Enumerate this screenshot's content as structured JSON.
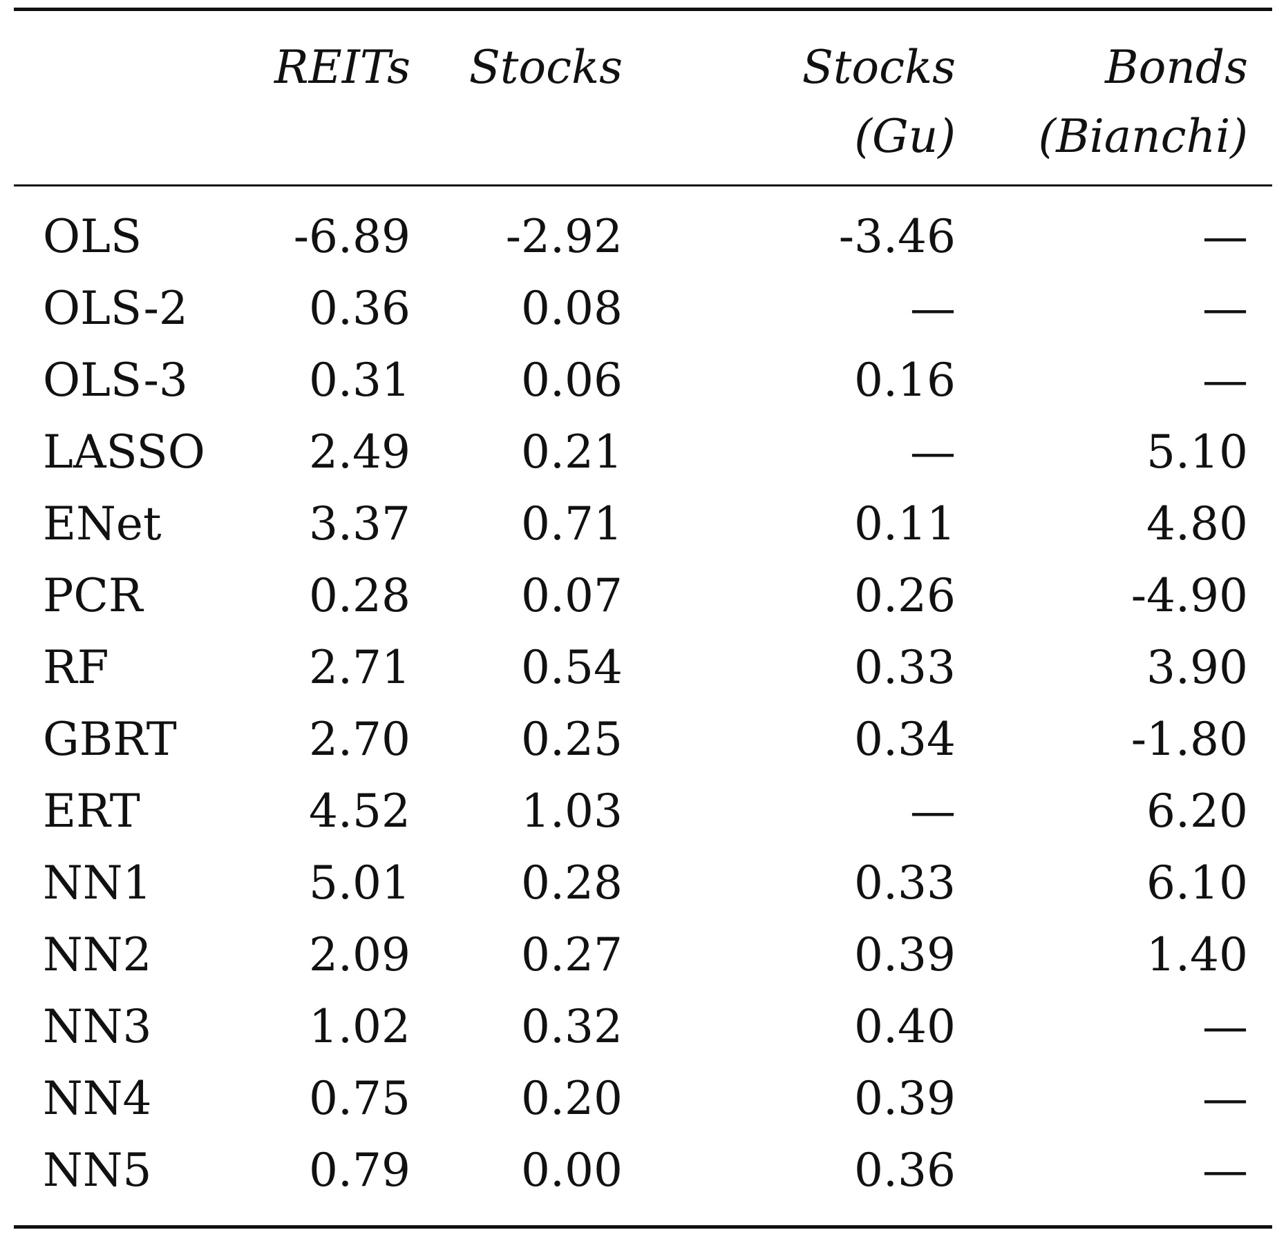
{
  "table": {
    "columns": [
      {
        "line1": "REITs",
        "line2": ""
      },
      {
        "line1": "Stocks",
        "line2": ""
      },
      {
        "line1": "Stocks",
        "line2": "(Gu)"
      },
      {
        "line1": "Bonds",
        "line2": "(Bianchi)"
      }
    ],
    "rows": [
      {
        "label": "OLS",
        "values": [
          "-6.89",
          "-2.92",
          "-3.46",
          "—"
        ]
      },
      {
        "label": "OLS-2",
        "values": [
          "0.36",
          "0.08",
          "—",
          "—"
        ]
      },
      {
        "label": "OLS-3",
        "values": [
          "0.31",
          "0.06",
          "0.16",
          "—"
        ]
      },
      {
        "label": "LASSO",
        "values": [
          "2.49",
          "0.21",
          "—",
          "5.10"
        ]
      },
      {
        "label": "ENet",
        "values": [
          "3.37",
          "0.71",
          "0.11",
          "4.80"
        ]
      },
      {
        "label": "PCR",
        "values": [
          "0.28",
          "0.07",
          "0.26",
          "-4.90"
        ]
      },
      {
        "label": "RF",
        "values": [
          "2.71",
          "0.54",
          "0.33",
          "3.90"
        ]
      },
      {
        "label": "GBRT",
        "values": [
          "2.70",
          "0.25",
          "0.34",
          "-1.80"
        ]
      },
      {
        "label": "ERT",
        "values": [
          "4.52",
          "1.03",
          "—",
          "6.20"
        ]
      },
      {
        "label": "NN1",
        "values": [
          "5.01",
          "0.28",
          "0.33",
          "6.10"
        ]
      },
      {
        "label": "NN2",
        "values": [
          "2.09",
          "0.27",
          "0.39",
          "1.40"
        ]
      },
      {
        "label": "NN3",
        "values": [
          "1.02",
          "0.32",
          "0.40",
          "—"
        ]
      },
      {
        "label": "NN4",
        "values": [
          "0.75",
          "0.20",
          "0.39",
          "—"
        ]
      },
      {
        "label": "NN5",
        "values": [
          "0.79",
          "0.00",
          "0.36",
          "—"
        ]
      }
    ]
  }
}
